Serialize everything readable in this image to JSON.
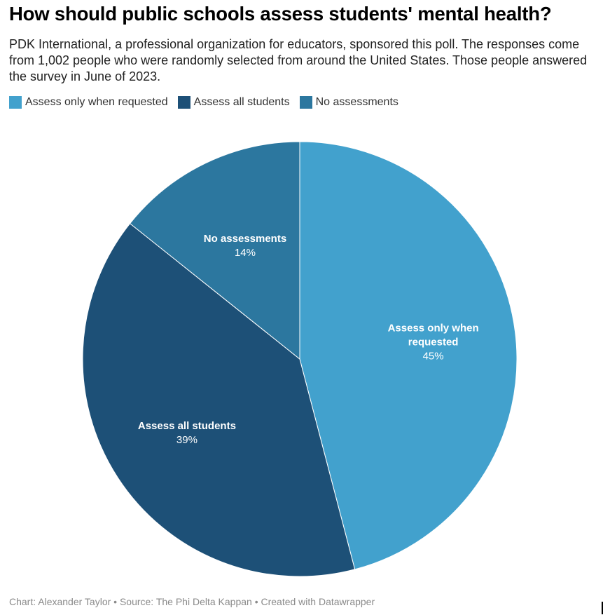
{
  "title": "How should public schools assess students' mental health?",
  "subtitle": "PDK International, a professional organization for educators, sponsored this poll. The responses come from 1,002 people who were randomly selected from around the United States. Those people answered the survey in June of 2023.",
  "legend": [
    {
      "label": "Assess only when requested",
      "color": "#42a1cd"
    },
    {
      "label": "Assess all students",
      "color": "#1d5077"
    },
    {
      "label": "No assessments",
      "color": "#2c779f"
    }
  ],
  "chart_data": {
    "type": "pie",
    "title": "How should public schools assess students' mental health?",
    "slices": [
      {
        "label": "Assess only when requested",
        "value": 45,
        "display": "45%",
        "color": "#42a1cd",
        "label_lines": [
          "Assess only when",
          "requested"
        ]
      },
      {
        "label": "Assess all students",
        "value": 39,
        "display": "39%",
        "color": "#1d5077",
        "label_lines": [
          "Assess all students"
        ]
      },
      {
        "label": "No assessments",
        "value": 14,
        "display": "14%",
        "color": "#2c779f",
        "label_lines": [
          "No assessments"
        ]
      }
    ],
    "start": "12 o'clock",
    "direction": "clockwise",
    "legend_position": "top-left"
  },
  "footer": "Chart: Alexander Taylor • Source: The Phi Delta Kappan • Created with Datawrapper"
}
